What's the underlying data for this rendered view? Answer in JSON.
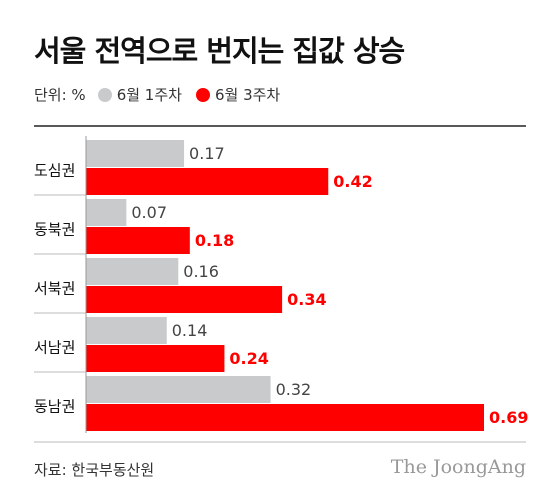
{
  "title": "서울 전역으로 번지는 집값 상승",
  "legend": {
    "unit": "단위: %",
    "series": [
      {
        "name": "6월 1주차",
        "color": "#c8cacb"
      },
      {
        "name": "6월 3주차",
        "color": "#ff0000"
      }
    ]
  },
  "source": "자료: 한국부동산원",
  "brand": "The JoongAng",
  "chart_data": {
    "type": "bar",
    "orientation": "horizontal",
    "categories": [
      "도심권",
      "동북권",
      "서북권",
      "서남권",
      "동남권"
    ],
    "series": [
      {
        "name": "6월 1주차",
        "color": "#c8cacb",
        "label_color": "#444444",
        "values": [
          0.17,
          0.07,
          0.16,
          0.14,
          0.32
        ]
      },
      {
        "name": "6월 3주차",
        "color": "#ff0000",
        "label_color": "#ff0000",
        "values": [
          0.42,
          0.18,
          0.34,
          0.24,
          0.69
        ]
      }
    ],
    "xlim": [
      0,
      0.69
    ],
    "grid": false,
    "legend_position": "top-left"
  }
}
